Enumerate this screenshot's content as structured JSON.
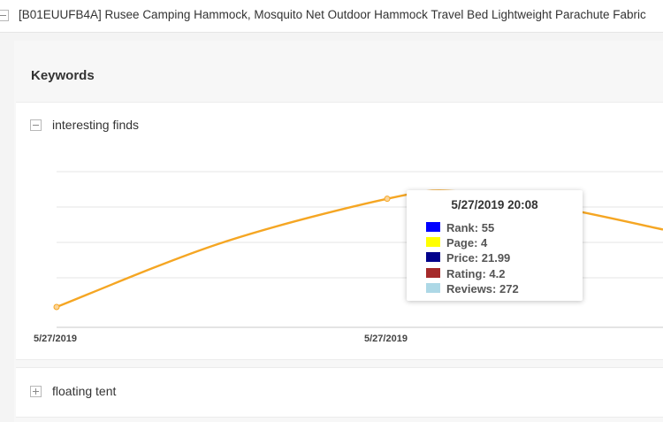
{
  "product": {
    "title": "[B01EUUFB4A] Rusee Camping Hammock, Mosquito Net Outdoor Hammock Travel Bed Lightweight Parachute Fabric"
  },
  "section": {
    "heading": "Keywords"
  },
  "keywords": [
    {
      "label": "interesting finds",
      "expanded": true
    },
    {
      "label": "floating tent",
      "expanded": false
    }
  ],
  "chart_data": {
    "type": "line",
    "title": "",
    "xlabel": "",
    "ylabel": "",
    "x_tick_labels": [
      "5/27/2019",
      "5/27/2019"
    ],
    "series": [
      {
        "values": [
          1.0,
          0.48,
          0.12,
          0.06,
          0.2,
          0.37
        ],
        "color": "#f5a623"
      }
    ],
    "grid": true,
    "tooltip": {
      "title": "5/27/2019 20:08",
      "rows": [
        {
          "label": "Rank:",
          "value": "55",
          "color": "#0000ff"
        },
        {
          "label": "Page:",
          "value": "4",
          "color": "#ffff00"
        },
        {
          "label": "Price:",
          "value": "21.99",
          "color": "#00008b"
        },
        {
          "label": "Rating:",
          "value": "4.2",
          "color": "#a52a2a"
        },
        {
          "label": "Reviews:",
          "value": "272",
          "color": "#add8e6"
        }
      ]
    }
  }
}
